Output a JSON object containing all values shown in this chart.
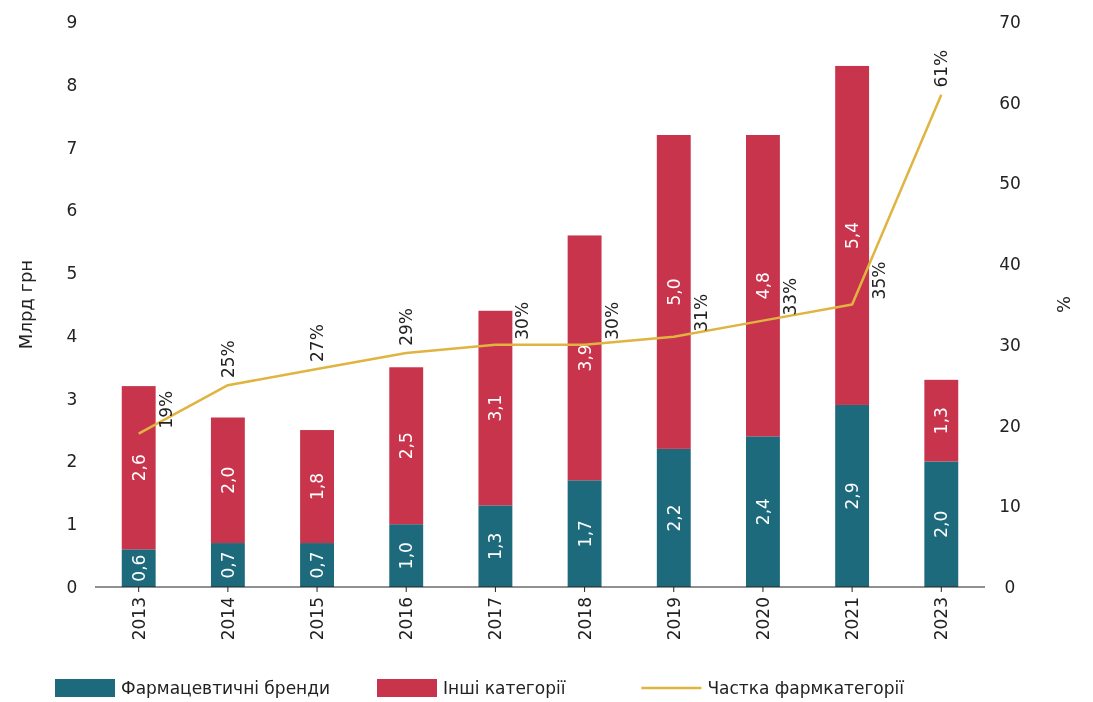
{
  "chart_data": {
    "type": "bar",
    "stacked": true,
    "categories": [
      "2013",
      "2014",
      "2015",
      "2016",
      "2017",
      "2018",
      "2019",
      "2020",
      "2021",
      "2023"
    ],
    "series": [
      {
        "name": "Фармацевтичні бренди",
        "color": "#1d6a7c",
        "values": [
          0.6,
          0.7,
          0.7,
          1.0,
          1.3,
          1.7,
          2.2,
          2.4,
          2.9,
          2.0
        ],
        "value_labels": [
          "0,6",
          "0,7",
          "0,7",
          "1,0",
          "1,3",
          "1,7",
          "2,2",
          "2,4",
          "2,9",
          "2,0"
        ]
      },
      {
        "name": "Інші категорії",
        "color": "#c8344c",
        "values": [
          2.6,
          2.0,
          1.8,
          2.5,
          3.1,
          3.9,
          5.0,
          4.8,
          5.4,
          1.3
        ],
        "value_labels": [
          "2,6",
          "2,0",
          "1,8",
          "2,5",
          "3,1",
          "3,9",
          "5,0",
          "4,8",
          "5,4",
          "1,3"
        ]
      },
      {
        "name": "Частка фармкатегорії",
        "type": "line",
        "axis": "y2",
        "color": "#e0b440",
        "values": [
          19,
          25,
          27,
          29,
          30,
          30,
          31,
          33,
          35,
          61
        ],
        "value_labels": [
          "19%",
          "25%",
          "27%",
          "29%",
          "30%",
          "30%",
          "31%",
          "33%",
          "35%",
          "61%"
        ]
      }
    ],
    "ylabel": "Млрд грн",
    "y2label": "%",
    "ylim": [
      0,
      9
    ],
    "yticks": [
      0,
      1,
      2,
      3,
      4,
      5,
      6,
      7,
      8,
      9
    ],
    "y2lim": [
      0,
      70
    ],
    "y2ticks": [
      0,
      10,
      20,
      30,
      40,
      50,
      60,
      70
    ],
    "legend": "bottom",
    "grid": false
  }
}
